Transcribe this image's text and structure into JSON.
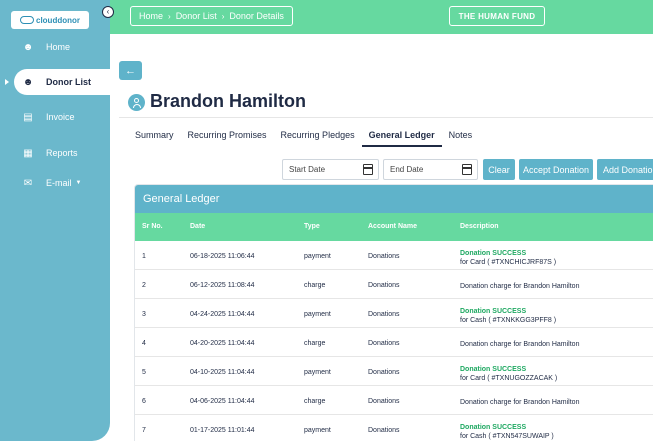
{
  "header": {
    "breadcrumb": [
      "Home",
      "Donor List",
      "Donor Details"
    ],
    "org_name": "THE HUMAN FUND"
  },
  "sidebar": {
    "logo_text": "clouddonor",
    "items": [
      {
        "label": "Home",
        "icon": "person-icon"
      },
      {
        "label": "Donor List",
        "icon": "person-icon",
        "active": true
      },
      {
        "label": "Invoice",
        "icon": "invoice-icon"
      },
      {
        "label": "Reports",
        "icon": "reports-icon"
      },
      {
        "label": "E-mail",
        "icon": "mail-icon"
      }
    ]
  },
  "donor": {
    "name": "Brandon Hamilton"
  },
  "tabs": [
    "Summary",
    "Recurring Promises",
    "Recurring Pledges",
    "General Ledger",
    "Notes"
  ],
  "filters": {
    "start_placeholder": "Start Date",
    "end_placeholder": "End Date",
    "clear_label": "Clear",
    "accept_label": "Accept Donation",
    "add_label": "Add Donation"
  },
  "ledger": {
    "title": "General Ledger",
    "columns": [
      "Sr No.",
      "Date",
      "Type",
      "Account Name",
      "Description"
    ],
    "rows": [
      {
        "sr": "1",
        "date": "06-18-2025 11:06:44",
        "type": "payment",
        "account": "Donations",
        "desc_title": "Donation SUCCESS",
        "desc_text": "for Card ( #TXNCHICJRF87S )"
      },
      {
        "sr": "2",
        "date": "06-12-2025 11:08:44",
        "type": "charge",
        "account": "Donations",
        "desc_title": "",
        "desc_text": "Donation charge for Brandon Hamilton"
      },
      {
        "sr": "3",
        "date": "04-24-2025 11:04:44",
        "type": "payment",
        "account": "Donations",
        "desc_title": "Donation SUCCESS",
        "desc_text": "for Cash ( #TXNKKGG3PFF8 )"
      },
      {
        "sr": "4",
        "date": "04-20-2025 11:04:44",
        "type": "charge",
        "account": "Donations",
        "desc_title": "",
        "desc_text": "Donation charge for Brandon Hamilton"
      },
      {
        "sr": "5",
        "date": "04-10-2025 11:04:44",
        "type": "payment",
        "account": "Donations",
        "desc_title": "Donation SUCCESS",
        "desc_text": "for Card ( #TXNUGOZZACAK )"
      },
      {
        "sr": "6",
        "date": "04-06-2025 11:04:44",
        "type": "charge",
        "account": "Donations",
        "desc_title": "",
        "desc_text": "Donation charge for Brandon Hamilton"
      },
      {
        "sr": "7",
        "date": "01-17-2025 11:01:44",
        "type": "payment",
        "account": "Donations",
        "desc_title": "Donation SUCCESS",
        "desc_text": "for Cash ( #TXN547SUWAIP )"
      }
    ]
  }
}
